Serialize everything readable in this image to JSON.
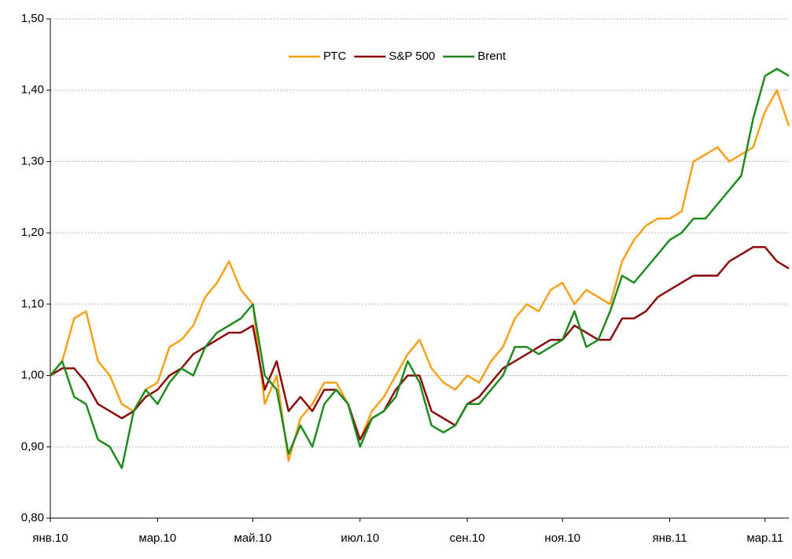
{
  "chart_data": {
    "type": "line",
    "categories": [
      "янв.10",
      null,
      null,
      null,
      null,
      null,
      null,
      null,
      null,
      "мар.10",
      null,
      null,
      null,
      null,
      null,
      null,
      null,
      "май.10",
      null,
      null,
      null,
      null,
      null,
      null,
      null,
      null,
      "июл.10",
      null,
      null,
      null,
      null,
      null,
      null,
      null,
      null,
      "сен.10",
      null,
      null,
      null,
      null,
      null,
      null,
      null,
      "ноя.10",
      null,
      null,
      null,
      null,
      null,
      null,
      null,
      null,
      "янв.11",
      null,
      null,
      null,
      null,
      null,
      null,
      null,
      "мар.11",
      null,
      null
    ],
    "series": [
      {
        "name": "РТС",
        "color": "#f7a11a",
        "values": [
          1.0,
          1.02,
          1.08,
          1.09,
          1.02,
          1.0,
          0.96,
          0.95,
          0.98,
          0.99,
          1.04,
          1.05,
          1.07,
          1.11,
          1.13,
          1.16,
          1.12,
          1.1,
          0.96,
          1.0,
          0.88,
          0.94,
          0.96,
          0.99,
          0.99,
          0.96,
          0.91,
          0.95,
          0.97,
          1.0,
          1.03,
          1.05,
          1.01,
          0.99,
          0.98,
          1.0,
          0.99,
          1.02,
          1.04,
          1.08,
          1.1,
          1.09,
          1.12,
          1.13,
          1.1,
          1.12,
          1.11,
          1.1,
          1.16,
          1.19,
          1.21,
          1.22,
          1.22,
          1.23,
          1.3,
          1.31,
          1.32,
          1.3,
          1.31,
          1.32,
          1.37,
          1.4,
          1.35
        ]
      },
      {
        "name": "S&P 500",
        "color": "#8b0a0a",
        "values": [
          1.0,
          1.01,
          1.01,
          0.99,
          0.96,
          0.95,
          0.94,
          0.95,
          0.97,
          0.98,
          1.0,
          1.01,
          1.03,
          1.04,
          1.05,
          1.06,
          1.06,
          1.07,
          0.98,
          1.02,
          0.95,
          0.97,
          0.95,
          0.98,
          0.98,
          0.96,
          0.91,
          0.94,
          0.95,
          0.98,
          1.0,
          1.0,
          0.95,
          0.94,
          0.93,
          0.96,
          0.97,
          0.99,
          1.01,
          1.02,
          1.03,
          1.04,
          1.05,
          1.05,
          1.07,
          1.06,
          1.05,
          1.05,
          1.08,
          1.08,
          1.09,
          1.11,
          1.12,
          1.13,
          1.14,
          1.14,
          1.14,
          1.16,
          1.17,
          1.18,
          1.18,
          1.16,
          1.15
        ]
      },
      {
        "name": "Brent",
        "color": "#1f8a1f",
        "values": [
          1.0,
          1.02,
          0.97,
          0.96,
          0.91,
          0.9,
          0.87,
          0.95,
          0.98,
          0.96,
          0.99,
          1.01,
          1.0,
          1.04,
          1.06,
          1.07,
          1.08,
          1.1,
          1.0,
          0.98,
          0.89,
          0.93,
          0.9,
          0.96,
          0.98,
          0.96,
          0.9,
          0.94,
          0.95,
          0.97,
          1.02,
          0.99,
          0.93,
          0.92,
          0.93,
          0.96,
          0.96,
          0.98,
          1.0,
          1.04,
          1.04,
          1.03,
          1.04,
          1.05,
          1.09,
          1.04,
          1.05,
          1.09,
          1.14,
          1.13,
          1.15,
          1.17,
          1.19,
          1.2,
          1.22,
          1.22,
          1.24,
          1.26,
          1.28,
          1.36,
          1.42,
          1.43,
          1.42
        ]
      }
    ],
    "ylim": [
      0.8,
      1.5
    ],
    "yticks": [
      {
        "value": 0.8,
        "label": "0,80"
      },
      {
        "value": 0.9,
        "label": "0,90"
      },
      {
        "value": 1.0,
        "label": "1,00"
      },
      {
        "value": 1.1,
        "label": "1,10"
      },
      {
        "value": 1.2,
        "label": "1,20"
      },
      {
        "value": 1.3,
        "label": "1,30"
      },
      {
        "value": 1.4,
        "label": "1,40"
      },
      {
        "value": 1.5,
        "label": "1,50"
      }
    ],
    "grid": true,
    "legend": "top"
  }
}
